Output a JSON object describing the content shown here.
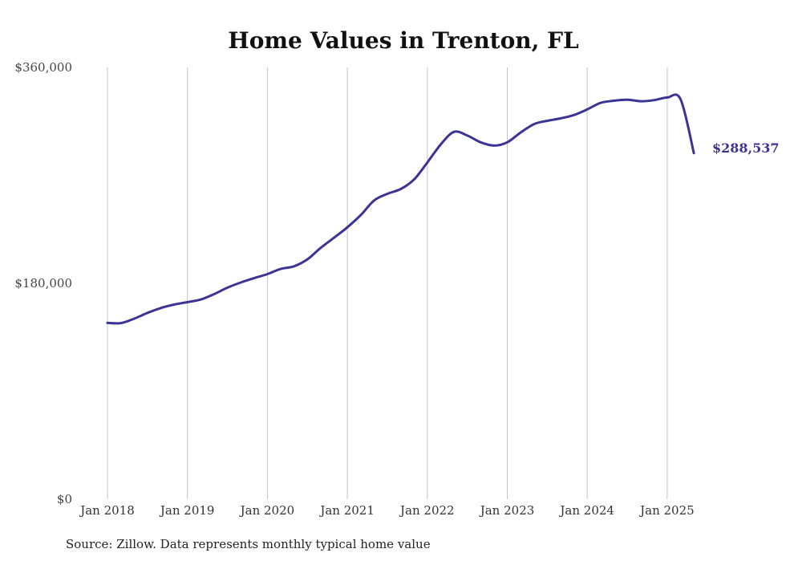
{
  "chart_data": {
    "type": "line",
    "title": "Home Values in Trenton, FL",
    "xlabel": "",
    "ylabel": "",
    "source": "Source: Zillow. Data represents monthly typical home value",
    "ylim": [
      0,
      360000
    ],
    "yticks": [
      {
        "value": 0,
        "label": "$0"
      },
      {
        "value": 180000,
        "label": "$180,000"
      },
      {
        "value": 360000,
        "label": "$360,000"
      }
    ],
    "xticks": [
      {
        "value": "2018-01",
        "label": "Jan 2018"
      },
      {
        "value": "2019-01",
        "label": "Jan 2019"
      },
      {
        "value": "2020-01",
        "label": "Jan 2020"
      },
      {
        "value": "2021-01",
        "label": "Jan 2021"
      },
      {
        "value": "2022-01",
        "label": "Jan 2022"
      },
      {
        "value": "2023-01",
        "label": "Jan 2023"
      },
      {
        "value": "2024-01",
        "label": "Jan 2024"
      },
      {
        "value": "2025-01",
        "label": "Jan 2025"
      }
    ],
    "grid": "vertical",
    "line_color": "#3b3494",
    "end_label": "$288,537",
    "series": [
      {
        "x": [
          "2018-01",
          "2018-03",
          "2018-05",
          "2018-07",
          "2018-09",
          "2018-11",
          "2019-01",
          "2019-03",
          "2019-05",
          "2019-07",
          "2019-09",
          "2019-11",
          "2020-01",
          "2020-03",
          "2020-05",
          "2020-07",
          "2020-09",
          "2020-11",
          "2021-01",
          "2021-03",
          "2021-05",
          "2021-07",
          "2021-09",
          "2021-11",
          "2022-01",
          "2022-03",
          "2022-05",
          "2022-07",
          "2022-09",
          "2022-11",
          "2023-01",
          "2023-03",
          "2023-05",
          "2023-07",
          "2023-09",
          "2023-11",
          "2024-01",
          "2024-03",
          "2024-05",
          "2024-07",
          "2024-09",
          "2024-11",
          "2025-01",
          "2025-03",
          "2025-05"
        ],
        "values": [
          147000,
          146800,
          150500,
          155300,
          159400,
          162300,
          164300,
          166500,
          171000,
          176400,
          180700,
          184300,
          187700,
          192000,
          194200,
          200000,
          209600,
          218000,
          226700,
          236800,
          249000,
          254600,
          258600,
          266500,
          280700,
          295700,
          306300,
          303200,
          297600,
          294800,
          297600,
          305700,
          312700,
          315500,
          317500,
          320300,
          325000,
          330400,
          332200,
          333100,
          331800,
          332700,
          334900,
          333500,
          288537
        ]
      }
    ]
  }
}
